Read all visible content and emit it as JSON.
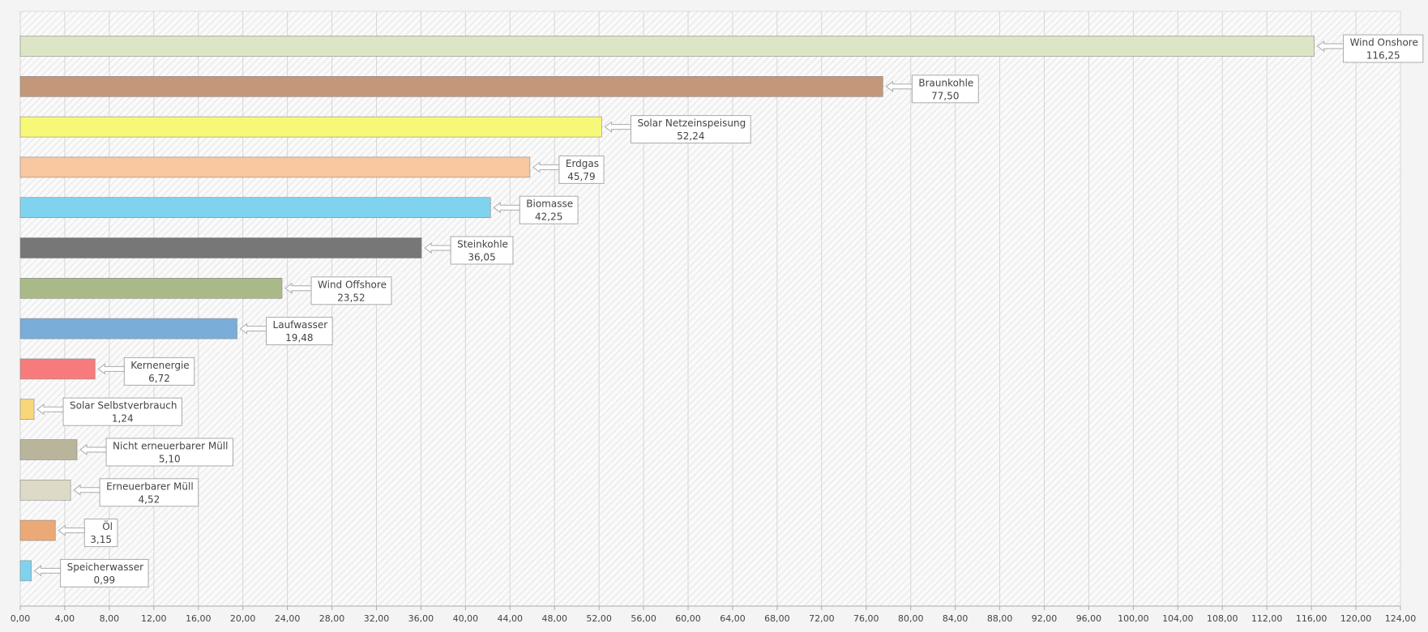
{
  "chart_data": {
    "type": "bar",
    "orientation": "horizontal",
    "categories": [
      "Wind Onshore",
      "Braunkohle",
      "Solar Netzeinspeisung",
      "Erdgas",
      "Biomasse",
      "Steinkohle",
      "Wind Offshore",
      "Laufwasser",
      "Kernenergie",
      "Solar Selbstverbrauch",
      "Nicht erneuerbarer Müll",
      "Erneuerbarer Müll",
      "Öl",
      "Speicherwasser"
    ],
    "values": [
      116.25,
      77.5,
      52.24,
      45.79,
      42.25,
      36.05,
      23.52,
      19.48,
      6.72,
      1.24,
      5.1,
      4.52,
      3.15,
      0.99
    ],
    "value_labels": [
      "116,25",
      "77,50",
      "52,24",
      "45,79",
      "42,25",
      "36,05",
      "23,52",
      "19,48",
      "6,72",
      "1,24",
      "5,10",
      "4,52",
      "3,15",
      "0,99"
    ],
    "colors": [
      "#dce6c6",
      "#c4977a",
      "#f8f878",
      "#f9c8a0",
      "#7fd3ef",
      "#777777",
      "#a9ba88",
      "#7aaed9",
      "#f77b7b",
      "#f8d77a",
      "#b9b59b",
      "#dddbc8",
      "#eaa976",
      "#7fd3ef"
    ],
    "xlim": [
      0,
      124
    ],
    "xticks": [
      {
        "value": 0,
        "label": "0,00"
      },
      {
        "value": 4,
        "label": "4,00"
      },
      {
        "value": 8,
        "label": "8,00"
      },
      {
        "value": 12,
        "label": "12,00"
      },
      {
        "value": 16,
        "label": "16,00"
      },
      {
        "value": 20,
        "label": "20,00"
      },
      {
        "value": 24,
        "label": "24,00"
      },
      {
        "value": 28,
        "label": "28,00"
      },
      {
        "value": 32,
        "label": "32,00"
      },
      {
        "value": 36,
        "label": "36,00"
      },
      {
        "value": 40,
        "label": "40,00"
      },
      {
        "value": 44,
        "label": "44,00"
      },
      {
        "value": 48,
        "label": "48,00"
      },
      {
        "value": 52,
        "label": "52,00"
      },
      {
        "value": 56,
        "label": "56,00"
      },
      {
        "value": 60,
        "label": "60,00"
      },
      {
        "value": 64,
        "label": "64,00"
      },
      {
        "value": 68,
        "label": "68,00"
      },
      {
        "value": 72,
        "label": "72,00"
      },
      {
        "value": 76,
        "label": "76,00"
      },
      {
        "value": 80,
        "label": "80,00"
      },
      {
        "value": 84,
        "label": "84,00"
      },
      {
        "value": 88,
        "label": "88,00"
      },
      {
        "value": 92,
        "label": "92,00"
      },
      {
        "value": 96,
        "label": "96,00"
      },
      {
        "value": 100,
        "label": "100,00"
      },
      {
        "value": 104,
        "label": "104,00"
      },
      {
        "value": 108,
        "label": "108,00"
      },
      {
        "value": 112,
        "label": "112,00"
      },
      {
        "value": 116,
        "label": "116,00"
      },
      {
        "value": 120,
        "label": "120,00"
      },
      {
        "value": 124,
        "label": "124,00"
      }
    ],
    "grid": true
  }
}
